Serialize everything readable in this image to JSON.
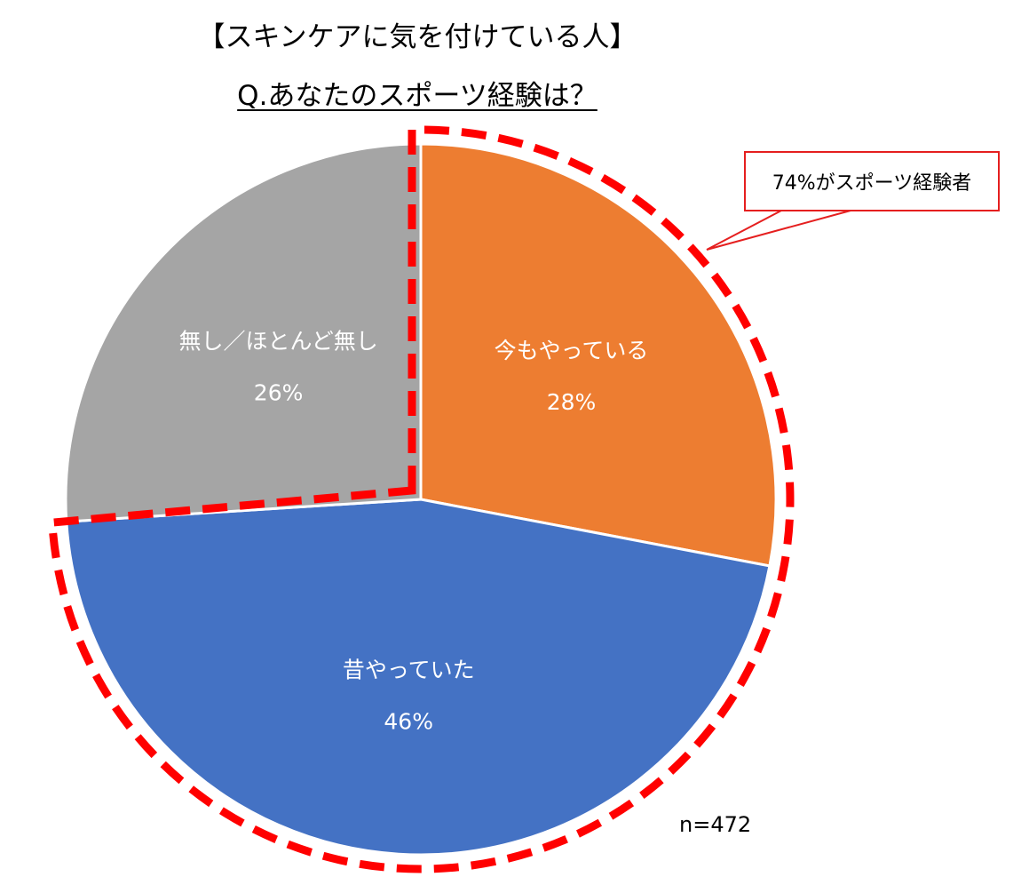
{
  "title": "【スキンケアに気を付けている人】",
  "question": "Q.あなたのスポーツ経験は？",
  "callout": "74%がスポーツ経験者",
  "sample_size": "n=472",
  "colors": {
    "current": "#ed7d31",
    "past": "#4472c4",
    "none": "#a5a5a5",
    "highlight": "#ff0000"
  },
  "chart_data": {
    "type": "pie",
    "title": "Q.あなたのスポーツ経験は？",
    "slices": [
      {
        "label": "今もやっている",
        "value": 28,
        "value_label": "28%",
        "color": "#ed7d31"
      },
      {
        "label": "昔やっていた",
        "value": 46,
        "value_label": "46%",
        "color": "#4472c4"
      },
      {
        "label": "無し／ほとんど無し",
        "value": 26,
        "value_label": "26%",
        "color": "#a5a5a5"
      }
    ],
    "start_angle_deg": 0,
    "direction": "clockwise",
    "highlighted_group": {
      "slices": [
        "今もやっている",
        "昔やっていた"
      ],
      "total_label": "74%がスポーツ経験者"
    },
    "legend": "none",
    "annotations": [
      "74%がスポーツ経験者",
      "n=472"
    ]
  }
}
